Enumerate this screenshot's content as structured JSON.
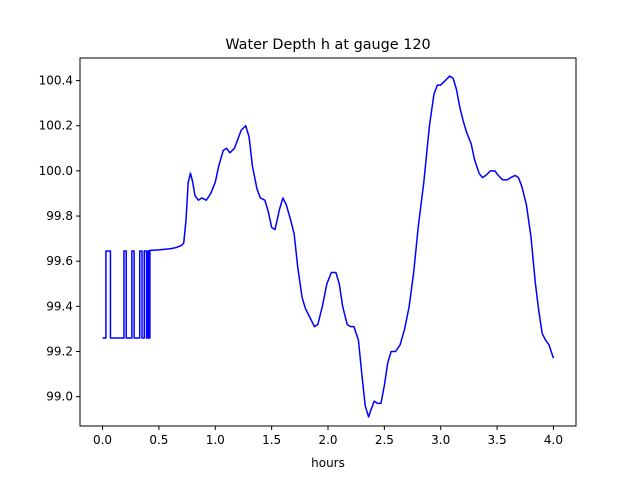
{
  "chart_data": {
    "type": "line",
    "title": "Water Depth h at gauge 120",
    "xlabel": "hours",
    "ylabel": "",
    "xlim": [
      -0.2,
      4.2
    ],
    "ylim": [
      98.87,
      100.5
    ],
    "x_ticks": [
      0.0,
      0.5,
      1.0,
      1.5,
      2.0,
      2.5,
      3.0,
      3.5,
      4.0
    ],
    "x_tick_labels": [
      "0.0",
      "0.5",
      "1.0",
      "1.5",
      "2.0",
      "2.5",
      "3.0",
      "3.5",
      "4.0"
    ],
    "y_ticks": [
      99.0,
      99.2,
      99.4,
      99.6,
      99.8,
      100.0,
      100.2,
      100.4
    ],
    "y_tick_labels": [
      "99.0",
      "99.2",
      "99.4",
      "99.6",
      "99.8",
      "100.0",
      "100.2",
      "100.4"
    ],
    "grid": false,
    "series": [
      {
        "color": "#0000ff",
        "points": [
          [
            0.0,
            99.26
          ],
          [
            0.02,
            99.26
          ],
          [
            0.03,
            99.26
          ],
          [
            0.03,
            99.645
          ],
          [
            0.07,
            99.645
          ],
          [
            0.07,
            99.26
          ],
          [
            0.19,
            99.26
          ],
          [
            0.19,
            99.645
          ],
          [
            0.21,
            99.645
          ],
          [
            0.21,
            99.26
          ],
          [
            0.26,
            99.26
          ],
          [
            0.26,
            99.645
          ],
          [
            0.28,
            99.645
          ],
          [
            0.28,
            99.26
          ],
          [
            0.33,
            99.26
          ],
          [
            0.33,
            99.645
          ],
          [
            0.35,
            99.645
          ],
          [
            0.35,
            99.26
          ],
          [
            0.37,
            99.26
          ],
          [
            0.37,
            99.645
          ],
          [
            0.39,
            99.645
          ],
          [
            0.39,
            99.26
          ],
          [
            0.4,
            99.26
          ],
          [
            0.4,
            99.645
          ],
          [
            0.41,
            99.645
          ],
          [
            0.41,
            99.26
          ],
          [
            0.42,
            99.26
          ],
          [
            0.42,
            99.648
          ],
          [
            0.5,
            99.65
          ],
          [
            0.6,
            99.655
          ],
          [
            0.65,
            99.66
          ],
          [
            0.7,
            99.67
          ],
          [
            0.72,
            99.68
          ],
          [
            0.74,
            99.78
          ],
          [
            0.76,
            99.95
          ],
          [
            0.78,
            99.99
          ],
          [
            0.8,
            99.95
          ],
          [
            0.82,
            99.89
          ],
          [
            0.85,
            99.87
          ],
          [
            0.88,
            99.88
          ],
          [
            0.92,
            99.87
          ],
          [
            0.96,
            99.9
          ],
          [
            1.0,
            99.95
          ],
          [
            1.03,
            100.02
          ],
          [
            1.07,
            100.09
          ],
          [
            1.1,
            100.1
          ],
          [
            1.13,
            100.08
          ],
          [
            1.17,
            100.1
          ],
          [
            1.2,
            100.14
          ],
          [
            1.23,
            100.18
          ],
          [
            1.27,
            100.2
          ],
          [
            1.3,
            100.15
          ],
          [
            1.33,
            100.02
          ],
          [
            1.37,
            99.92
          ],
          [
            1.4,
            99.88
          ],
          [
            1.44,
            99.87
          ],
          [
            1.47,
            99.82
          ],
          [
            1.5,
            99.75
          ],
          [
            1.53,
            99.74
          ],
          [
            1.57,
            99.83
          ],
          [
            1.6,
            99.88
          ],
          [
            1.63,
            99.85
          ],
          [
            1.67,
            99.78
          ],
          [
            1.7,
            99.72
          ],
          [
            1.73,
            99.58
          ],
          [
            1.77,
            99.44
          ],
          [
            1.8,
            99.39
          ],
          [
            1.84,
            99.35
          ],
          [
            1.88,
            99.31
          ],
          [
            1.91,
            99.32
          ],
          [
            1.95,
            99.4
          ],
          [
            1.99,
            99.5
          ],
          [
            2.03,
            99.55
          ],
          [
            2.07,
            99.55
          ],
          [
            2.1,
            99.5
          ],
          [
            2.13,
            99.4
          ],
          [
            2.17,
            99.32
          ],
          [
            2.2,
            99.31
          ],
          [
            2.23,
            99.31
          ],
          [
            2.27,
            99.25
          ],
          [
            2.3,
            99.1
          ],
          [
            2.33,
            98.96
          ],
          [
            2.36,
            98.91
          ],
          [
            2.38,
            98.94
          ],
          [
            2.41,
            98.98
          ],
          [
            2.44,
            98.97
          ],
          [
            2.47,
            98.97
          ],
          [
            2.5,
            99.05
          ],
          [
            2.53,
            99.15
          ],
          [
            2.56,
            99.2
          ],
          [
            2.6,
            99.2
          ],
          [
            2.64,
            99.23
          ],
          [
            2.68,
            99.3
          ],
          [
            2.72,
            99.4
          ],
          [
            2.76,
            99.55
          ],
          [
            2.8,
            99.75
          ],
          [
            2.85,
            99.95
          ],
          [
            2.9,
            100.2
          ],
          [
            2.94,
            100.34
          ],
          [
            2.97,
            100.38
          ],
          [
            3.0,
            100.38
          ],
          [
            3.04,
            100.4
          ],
          [
            3.08,
            100.42
          ],
          [
            3.11,
            100.41
          ],
          [
            3.14,
            100.36
          ],
          [
            3.17,
            100.28
          ],
          [
            3.2,
            100.22
          ],
          [
            3.23,
            100.17
          ],
          [
            3.27,
            100.12
          ],
          [
            3.3,
            100.05
          ],
          [
            3.34,
            99.99
          ],
          [
            3.37,
            99.97
          ],
          [
            3.4,
            99.98
          ],
          [
            3.44,
            100.0
          ],
          [
            3.48,
            100.0
          ],
          [
            3.51,
            99.98
          ],
          [
            3.55,
            99.96
          ],
          [
            3.59,
            99.96
          ],
          [
            3.62,
            99.97
          ],
          [
            3.66,
            99.98
          ],
          [
            3.69,
            99.97
          ],
          [
            3.72,
            99.93
          ],
          [
            3.76,
            99.85
          ],
          [
            3.8,
            99.71
          ],
          [
            3.84,
            99.5
          ],
          [
            3.87,
            99.38
          ],
          [
            3.9,
            99.28
          ],
          [
            3.93,
            99.25
          ],
          [
            3.96,
            99.23
          ],
          [
            3.98,
            99.2
          ],
          [
            4.0,
            99.17
          ]
        ]
      }
    ]
  }
}
